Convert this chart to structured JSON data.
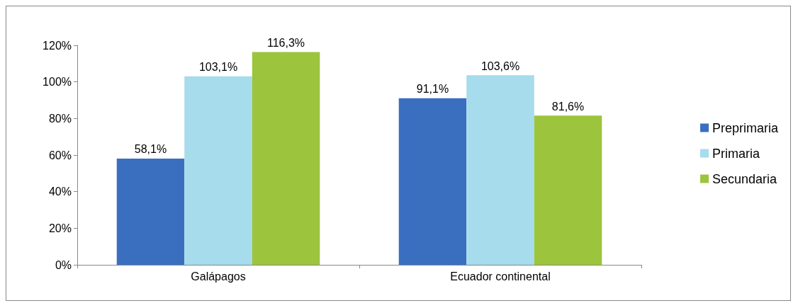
{
  "chart_data": {
    "type": "bar",
    "categories": [
      "Galápagos",
      "Ecuador continental"
    ],
    "series": [
      {
        "name": "Preprimaria",
        "color": "#3a6fc0",
        "values": [
          58.1,
          91.1
        ],
        "value_labels": [
          "58,1%",
          "91,1%"
        ]
      },
      {
        "name": "Primaria",
        "color": "#a6dcec",
        "values": [
          103.1,
          103.6
        ],
        "value_labels": [
          "103,1%",
          "103,6%"
        ]
      },
      {
        "name": "Secundaria",
        "color": "#9cc43c",
        "values": [
          116.3,
          81.6
        ],
        "value_labels": [
          "116,3%",
          "81,6%"
        ]
      }
    ],
    "ylim": [
      0,
      120
    ],
    "yticks": [
      {
        "value": 0,
        "label": "0%"
      },
      {
        "value": 20,
        "label": "20%"
      },
      {
        "value": 40,
        "label": "40%"
      },
      {
        "value": 60,
        "label": "60%"
      },
      {
        "value": 80,
        "label": "80%"
      },
      {
        "value": 100,
        "label": "100%"
      },
      {
        "value": 120,
        "label": "120%"
      }
    ],
    "grid": false,
    "legend": "right"
  }
}
